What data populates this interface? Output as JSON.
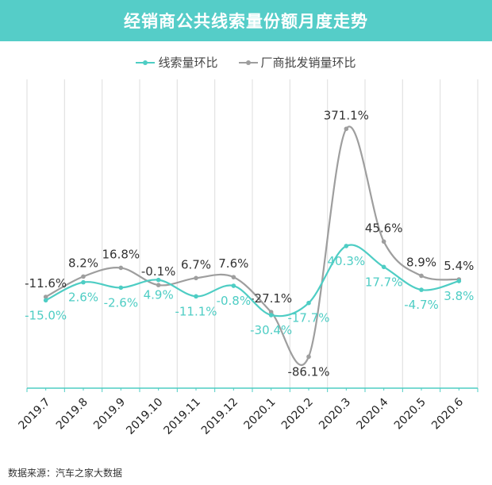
{
  "title": "经销商公共线索量份额月度走势",
  "source": "数据来源：汽车之家大数据",
  "colors": {
    "title_bg": "#55cdc8",
    "series_a": "#4ecdc4",
    "series_b": "#9e9e9e"
  },
  "chart_data": {
    "type": "line",
    "title": "经销商公共线索量份额月度走势",
    "categories": [
      "2019.7",
      "2019.8",
      "2019.9",
      "2019.10",
      "2019.11",
      "2019.12",
      "2020.1",
      "2020.2",
      "2020.3",
      "2020.4",
      "2020.5",
      "2020.6"
    ],
    "y_scale": "nonlinear (compressed at large values)",
    "grid": "vertical lines",
    "legend": "top-center",
    "series": [
      {
        "name": "线索量环比",
        "values": [
          -15.0,
          2.6,
          -2.6,
          4.9,
          -11.1,
          -0.8,
          -30.4,
          -17.7,
          40.3,
          17.7,
          -4.7,
          3.8
        ],
        "labels": [
          "-15.0%",
          "2.6%",
          "-2.6%",
          "4.9%",
          "-11.1%",
          "-0.8%",
          "-30.4%",
          "-17.7%",
          "40.3%",
          "17.7%",
          "-4.7%",
          "3.8%"
        ]
      },
      {
        "name": "厂商批发销量环比",
        "values": [
          -11.6,
          8.2,
          16.8,
          -0.1,
          6.7,
          7.6,
          -27.1,
          -86.1,
          371.1,
          45.6,
          8.9,
          5.4
        ],
        "labels": [
          "-11.6%",
          "8.2%",
          "16.8%",
          "-0.1%",
          "6.7%",
          "7.6%",
          "-27.1%",
          "-86.1%",
          "371.1%",
          "45.6%",
          "8.9%",
          "5.4%"
        ]
      }
    ]
  }
}
